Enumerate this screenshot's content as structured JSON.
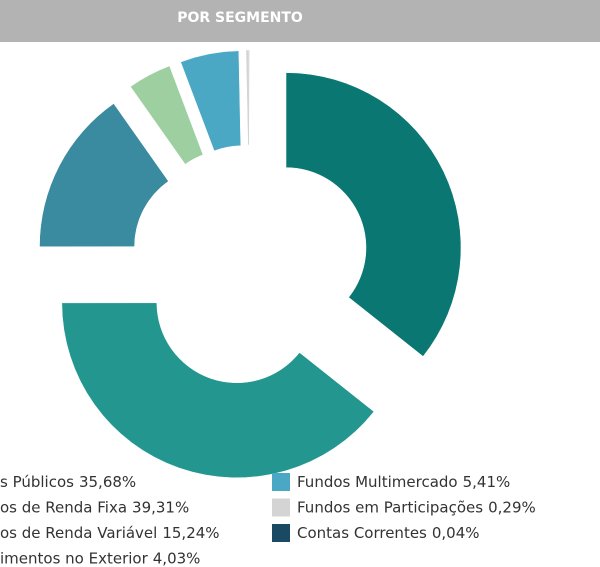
{
  "chart_data": {
    "type": "pie",
    "title": "POR SEGMENTO",
    "categories": [
      "s Públicos",
      "os de Renda Fixa",
      "os de Renda Variável",
      "imentos no Exterior",
      "Fundos Multimercado",
      "Fundos em Participações",
      "Contas Correntes"
    ],
    "values": [
      35.68,
      39.31,
      15.24,
      4.03,
      5.41,
      0.29,
      0.04
    ],
    "value_labels": [
      "35,68%",
      "39,31%",
      "15,24%",
      "4,03%",
      "5,41%",
      "0,29%",
      "0,04%"
    ],
    "colors": [
      "#0b7772",
      "#22968f",
      "#3a8aa0",
      "#9dcfa1",
      "#4aa8c4",
      "#d4d4d4",
      "#1a4a63"
    ]
  }
}
